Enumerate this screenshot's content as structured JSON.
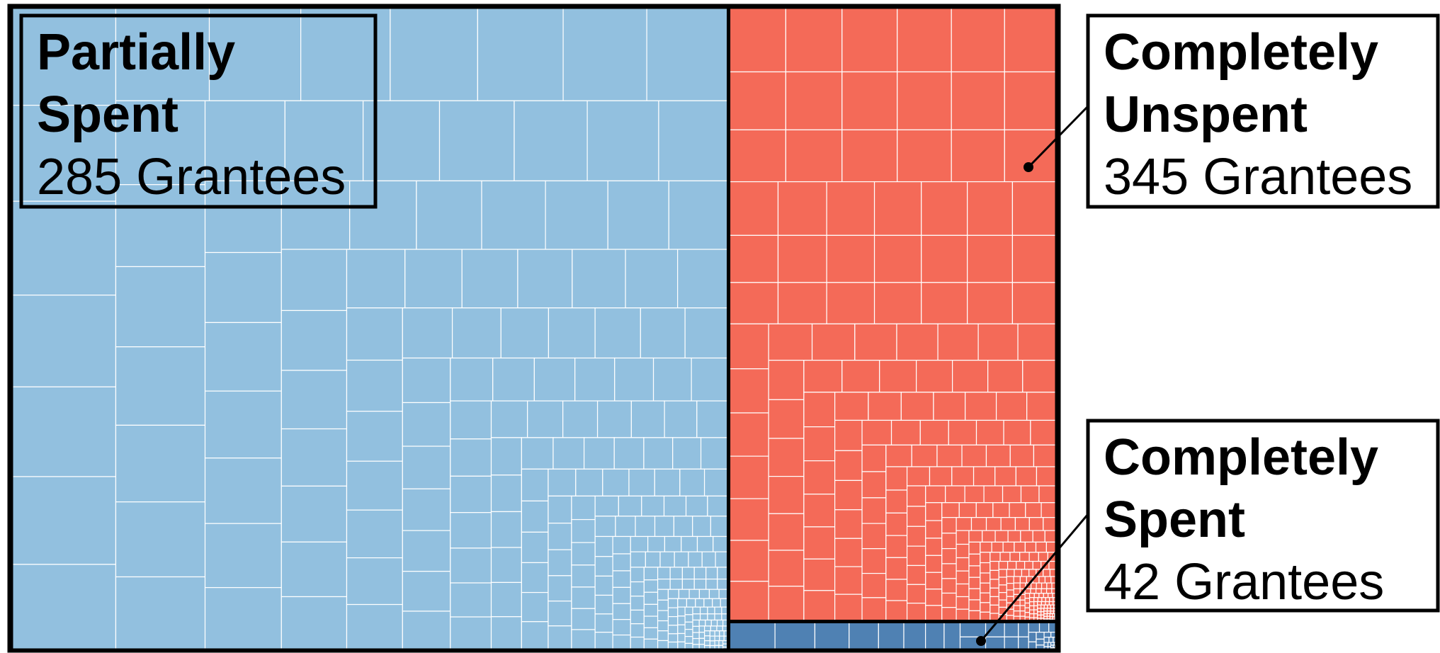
{
  "chart_data": {
    "type": "treemap",
    "groups": [
      {
        "name": [
          "Partially",
          "Spent"
        ],
        "count": 285,
        "unit": "Grantees",
        "value": 68.6,
        "color": "#92c0df"
      },
      {
        "name": [
          "Completely",
          "Unspent"
        ],
        "count": 345,
        "unit": "Grantees",
        "value": 30.0,
        "color": "#f46a58"
      },
      {
        "name": [
          "Completely",
          "Spent"
        ],
        "count": 42,
        "unit": "Grantees",
        "value": 1.4,
        "color": "#4f81b3"
      }
    ]
  }
}
